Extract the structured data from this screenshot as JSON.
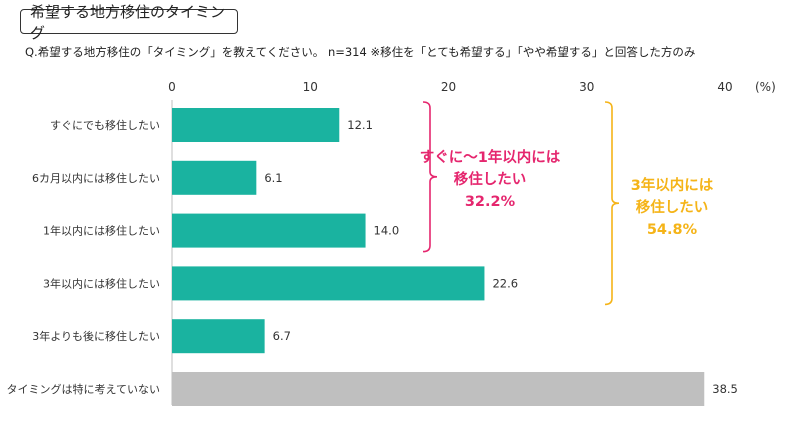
{
  "header": {
    "title": "希望する地方移住のタイミング",
    "question": "Q.希望する地方移住の「タイミング」を教えてください。 n=314 ※移住を「とても希望する」「やや希望する」と回答した方のみ"
  },
  "chart_data": {
    "type": "bar",
    "orientation": "horizontal",
    "categories": [
      "すぐにでも移住したい",
      "6カ月以内には移住したい",
      "1年以内には移住したい",
      "3年以内には移住したい",
      "3年よりも後に移住したい",
      "タイミングは特に考えていない"
    ],
    "values": [
      12.1,
      6.1,
      14.0,
      22.6,
      6.7,
      38.5
    ],
    "value_labels": [
      "12.1",
      "6.1",
      "14.0",
      "22.6",
      "6.7",
      "38.5"
    ],
    "bar_colors": [
      "#1ab3a0",
      "#1ab3a0",
      "#1ab3a0",
      "#1ab3a0",
      "#1ab3a0",
      "#bfbfbf"
    ],
    "xlim": [
      0,
      40
    ],
    "ticks": [
      "0",
      "10",
      "20",
      "30",
      "40"
    ],
    "unit": "(%)",
    "grid": false,
    "annotations": [
      {
        "lines": [
          "すぐに～1年以内には",
          "移住したい",
          "32.2%"
        ],
        "color": "#e5266e",
        "span": [
          0,
          2
        ]
      },
      {
        "lines": [
          "3年以内には",
          "移住したい",
          "54.8%"
        ],
        "color": "#f5b418",
        "span": [
          0,
          3
        ]
      }
    ]
  }
}
